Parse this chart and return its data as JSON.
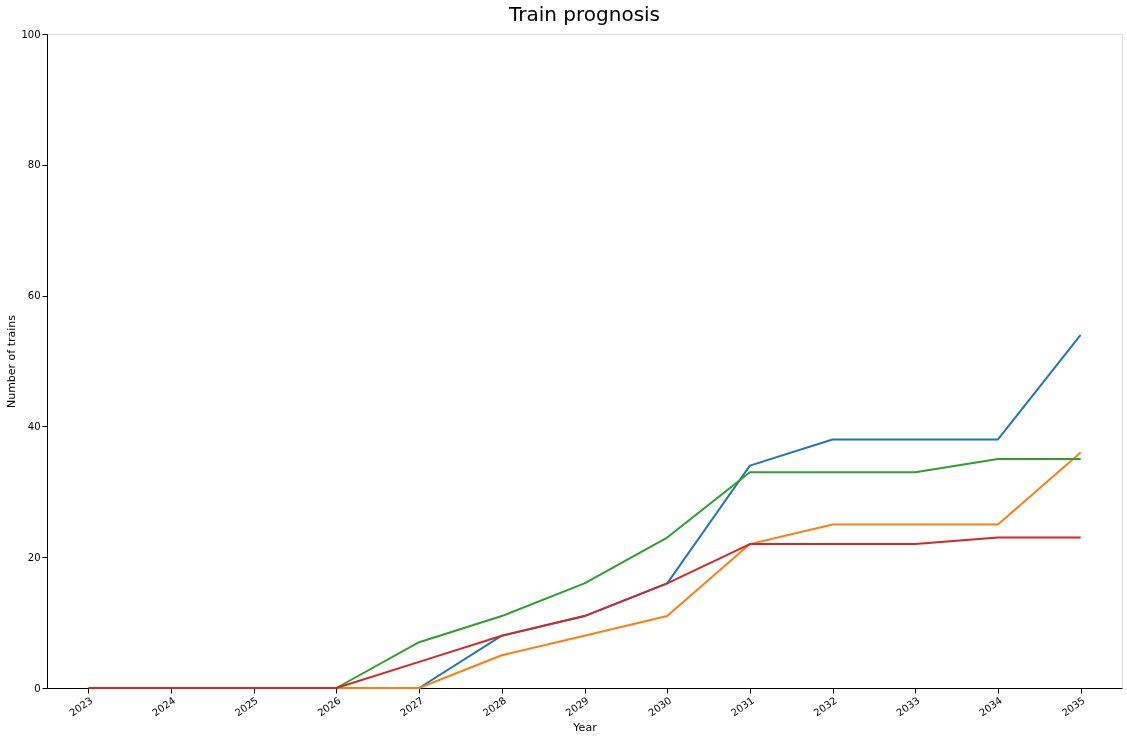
{
  "chart_data": {
    "type": "line",
    "title": "Train prognosis",
    "xlabel": "Year",
    "ylabel": "Number of trains",
    "categories": [
      "2023",
      "2024",
      "2025",
      "2026",
      "2027",
      "2028",
      "2029",
      "2030",
      "2031",
      "2032",
      "2033",
      "2034",
      "2035"
    ],
    "series": [
      {
        "color": "#1f77b4",
        "values": [
          null,
          null,
          null,
          0,
          0,
          8,
          11,
          16,
          34,
          38,
          38,
          38,
          54
        ]
      },
      {
        "color": "#ff7f0e",
        "values": [
          null,
          null,
          0,
          0,
          0,
          5,
          8,
          11,
          22,
          25,
          25,
          25,
          36
        ]
      },
      {
        "color": "#2ca02c",
        "values": [
          null,
          null,
          0,
          0,
          7,
          11,
          16,
          23,
          33,
          33,
          33,
          35,
          35
        ]
      },
      {
        "color": "#d62728",
        "values": [
          0,
          0,
          0,
          0,
          4,
          8,
          11,
          16,
          22,
          22,
          22,
          23,
          23
        ]
      }
    ],
    "ylim": [
      0,
      100
    ],
    "yticks": [
      0,
      20,
      40,
      60,
      80,
      100
    ],
    "grid": false,
    "legend": false,
    "marker": "none",
    "line_style": "solid"
  }
}
